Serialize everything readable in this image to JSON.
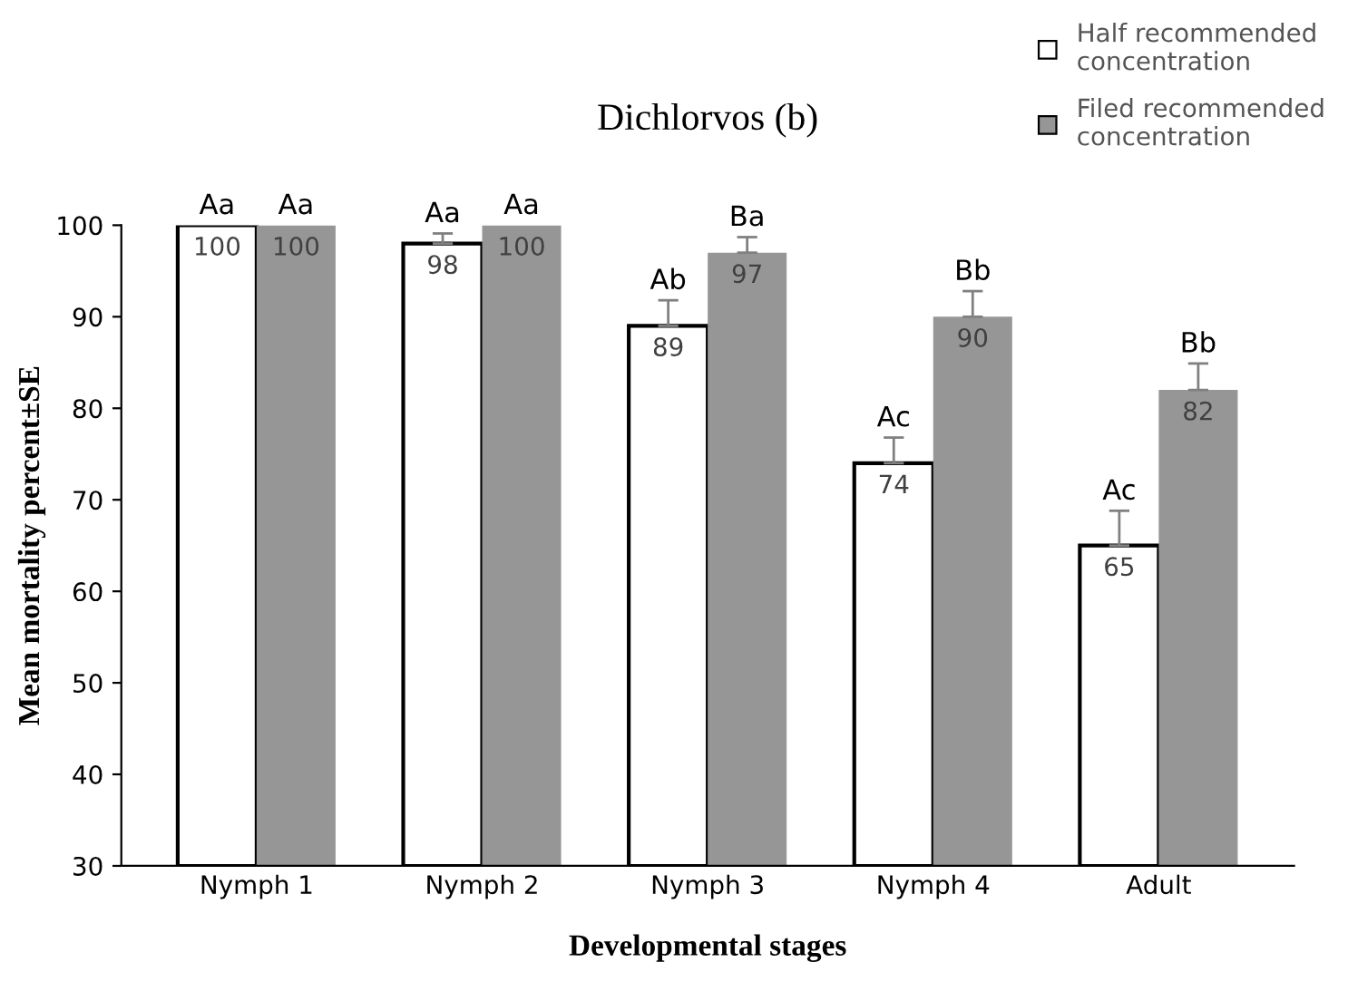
{
  "chart_data": {
    "type": "bar",
    "title": "Dichlorvos (b)",
    "xlabel": "Developmental stages",
    "ylabel": "Mean mortality percent±SE",
    "categories": [
      "Nymph 1",
      "Nymph 2",
      "Nymph 3",
      "Nymph 4",
      "Adult"
    ],
    "series": [
      {
        "name": "Half recommended concentration",
        "color": "#ffffff",
        "values": [
          100,
          98,
          89,
          74,
          65
        ],
        "errors": [
          null,
          [
            98,
            99.1
          ],
          [
            89,
            91.8
          ],
          [
            74,
            76.8
          ],
          [
            65,
            68.8
          ]
        ]
      },
      {
        "name": "Filed recommended concentration",
        "color": "#969696",
        "values": [
          100,
          100,
          97,
          90,
          82
        ],
        "errors": [
          null,
          null,
          [
            97,
            98.7
          ],
          [
            90,
            92.8
          ],
          [
            82,
            84.9
          ]
        ]
      }
    ],
    "annotations": [
      "Aa",
      "Aa",
      "Aa",
      "Aa",
      "Ab",
      "Ba",
      "Ac",
      "Bb",
      "Ac",
      "Bb"
    ],
    "data_labels": true,
    "ylim": [
      30,
      100
    ],
    "yticks": [
      30,
      40,
      50,
      60,
      70,
      80,
      90,
      100
    ],
    "grid": false,
    "legend": "top right"
  }
}
